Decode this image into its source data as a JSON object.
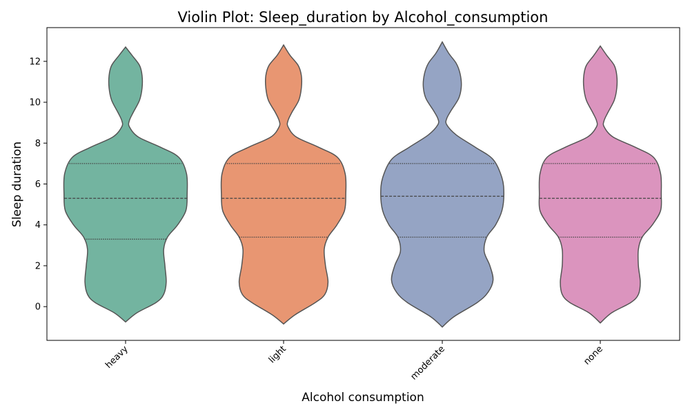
{
  "chart_data": {
    "type": "violin",
    "title": "Violin Plot: Sleep_duration by Alcohol_consumption",
    "xlabel": "Alcohol consumption",
    "ylabel": "Sleep duration",
    "categories": [
      "heavy",
      "light",
      "moderate",
      "none"
    ],
    "ylim": [
      -1.65,
      13.65
    ],
    "y_ticks": [
      0,
      2,
      4,
      6,
      8,
      10,
      12
    ],
    "x_tick_rotation": 45,
    "grid": false,
    "colors": {
      "heavy": "#73b4a0",
      "light": "#e89672",
      "moderate": "#95a4c4",
      "none": "#db94be",
      "outline": "#555555",
      "inner_lines": "#444444"
    },
    "series": [
      {
        "category": "heavy",
        "quartiles": [
          3.3,
          5.3,
          7.0
        ],
        "range": [
          -0.75,
          12.7
        ],
        "density": [
          [
            -0.75,
            0.0
          ],
          [
            -0.3,
            0.18
          ],
          [
            0.2,
            0.48
          ],
          [
            0.6,
            0.6
          ],
          [
            1.2,
            0.64
          ],
          [
            2.0,
            0.62
          ],
          [
            2.8,
            0.6
          ],
          [
            3.4,
            0.66
          ],
          [
            4.0,
            0.82
          ],
          [
            4.7,
            0.95
          ],
          [
            5.5,
            0.97
          ],
          [
            6.5,
            0.96
          ],
          [
            7.3,
            0.84
          ],
          [
            7.8,
            0.55
          ],
          [
            8.3,
            0.2
          ],
          [
            8.8,
            0.06
          ],
          [
            9.1,
            0.06
          ],
          [
            9.5,
            0.12
          ],
          [
            10.1,
            0.22
          ],
          [
            10.7,
            0.26
          ],
          [
            11.3,
            0.26
          ],
          [
            11.8,
            0.22
          ],
          [
            12.3,
            0.1
          ],
          [
            12.7,
            0.0
          ]
        ]
      },
      {
        "category": "light",
        "quartiles": [
          3.4,
          5.3,
          7.0
        ],
        "range": [
          -0.85,
          12.8
        ],
        "density": [
          [
            -0.85,
            0.0
          ],
          [
            -0.4,
            0.18
          ],
          [
            0.2,
            0.5
          ],
          [
            0.6,
            0.65
          ],
          [
            1.2,
            0.7
          ],
          [
            2.0,
            0.66
          ],
          [
            2.8,
            0.64
          ],
          [
            3.4,
            0.7
          ],
          [
            4.0,
            0.84
          ],
          [
            4.7,
            0.96
          ],
          [
            5.5,
            0.98
          ],
          [
            6.5,
            0.97
          ],
          [
            7.3,
            0.85
          ],
          [
            7.8,
            0.55
          ],
          [
            8.3,
            0.2
          ],
          [
            8.8,
            0.07
          ],
          [
            9.1,
            0.07
          ],
          [
            9.5,
            0.13
          ],
          [
            10.1,
            0.24
          ],
          [
            10.7,
            0.28
          ],
          [
            11.3,
            0.28
          ],
          [
            11.8,
            0.23
          ],
          [
            12.3,
            0.1
          ],
          [
            12.8,
            0.0
          ]
        ]
      },
      {
        "category": "moderate",
        "quartiles": [
          3.4,
          5.4,
          7.0
        ],
        "range": [
          -1.0,
          12.95
        ],
        "density": [
          [
            -1.0,
            0.0
          ],
          [
            -0.5,
            0.18
          ],
          [
            0.2,
            0.55
          ],
          [
            0.7,
            0.72
          ],
          [
            1.3,
            0.8
          ],
          [
            2.0,
            0.75
          ],
          [
            2.7,
            0.66
          ],
          [
            3.4,
            0.7
          ],
          [
            4.0,
            0.84
          ],
          [
            4.7,
            0.94
          ],
          [
            5.5,
            0.97
          ],
          [
            6.3,
            0.94
          ],
          [
            7.2,
            0.8
          ],
          [
            7.8,
            0.52
          ],
          [
            8.4,
            0.22
          ],
          [
            8.9,
            0.07
          ],
          [
            9.2,
            0.07
          ],
          [
            9.6,
            0.14
          ],
          [
            10.2,
            0.26
          ],
          [
            10.8,
            0.3
          ],
          [
            11.4,
            0.28
          ],
          [
            11.9,
            0.22
          ],
          [
            12.4,
            0.1
          ],
          [
            12.95,
            0.0
          ]
        ]
      },
      {
        "category": "none",
        "quartiles": [
          3.4,
          5.3,
          7.0
        ],
        "range": [
          -0.8,
          12.75
        ],
        "density": [
          [
            -0.8,
            0.0
          ],
          [
            -0.3,
            0.18
          ],
          [
            0.2,
            0.48
          ],
          [
            0.6,
            0.6
          ],
          [
            1.2,
            0.63
          ],
          [
            2.0,
            0.6
          ],
          [
            2.8,
            0.6
          ],
          [
            3.4,
            0.66
          ],
          [
            4.0,
            0.82
          ],
          [
            4.7,
            0.95
          ],
          [
            5.5,
            0.96
          ],
          [
            6.5,
            0.95
          ],
          [
            7.3,
            0.84
          ],
          [
            7.8,
            0.55
          ],
          [
            8.3,
            0.2
          ],
          [
            8.8,
            0.06
          ],
          [
            9.1,
            0.06
          ],
          [
            9.5,
            0.12
          ],
          [
            10.1,
            0.22
          ],
          [
            10.7,
            0.26
          ],
          [
            11.3,
            0.26
          ],
          [
            11.8,
            0.22
          ],
          [
            12.3,
            0.1
          ],
          [
            12.75,
            0.0
          ]
        ]
      }
    ]
  }
}
